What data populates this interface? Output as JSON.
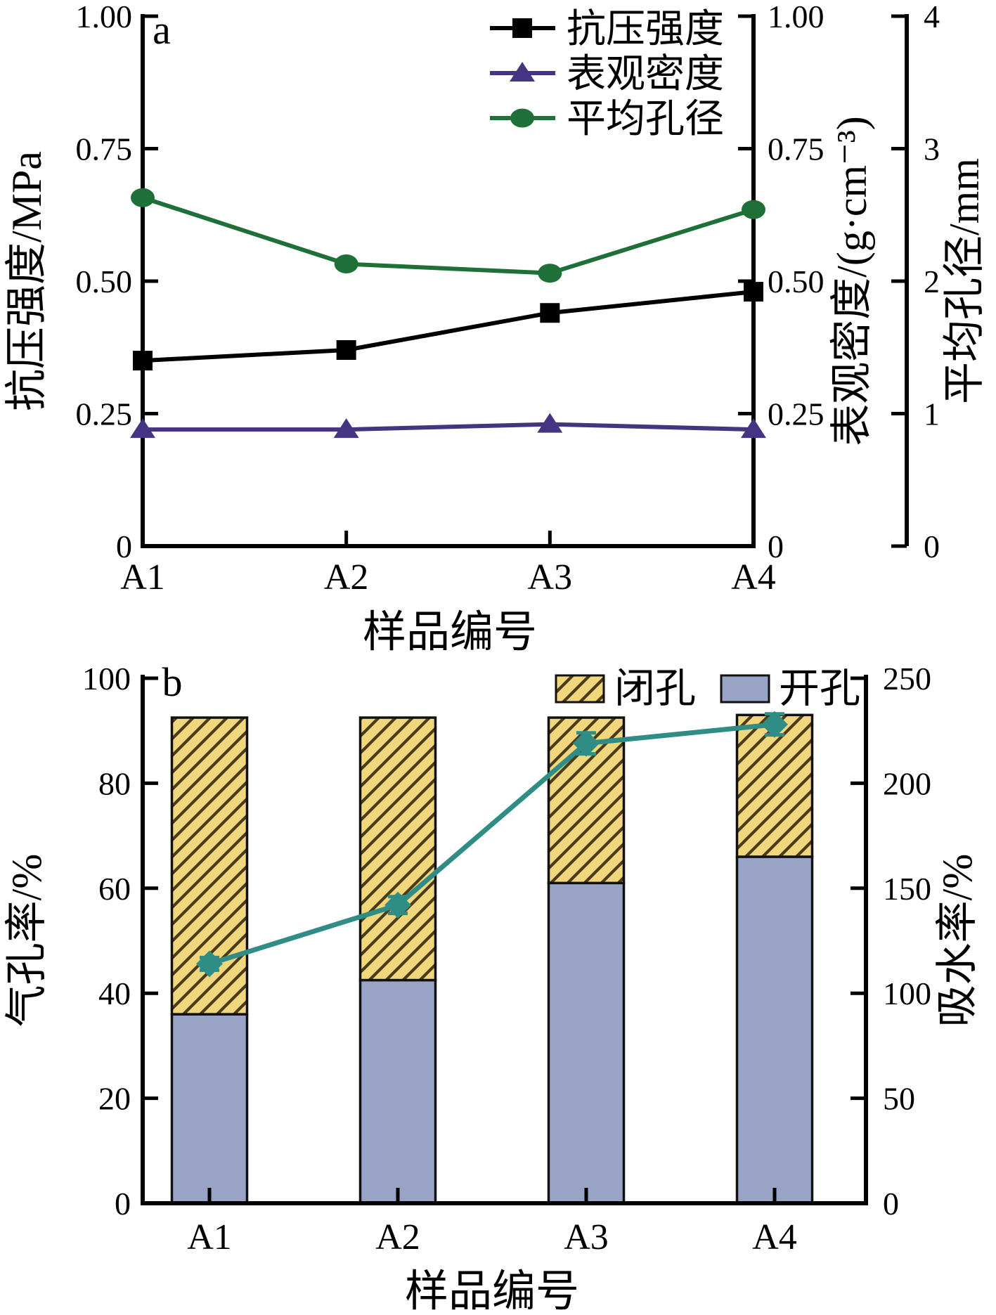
{
  "style": {
    "background": "#ffffff",
    "axis_color": "#000000",
    "series_colors": {
      "compressive": "#000000",
      "density": "#453481",
      "pore": "#1e7038",
      "absorption": "#2f8d85"
    },
    "bar_colors": {
      "closed_fill": "#f2d67b",
      "closed_hatch": "#4a3b1d",
      "open_fill": "#98a3c6",
      "edge": "#111111"
    }
  },
  "chart_data": [
    {
      "id": "panel_a",
      "type": "line",
      "panel_label": "a",
      "xlabel": "样品编号",
      "categories": [
        "A1",
        "A2",
        "A3",
        "A4"
      ],
      "left_axis": {
        "label": "抗压强度/MPa",
        "ticks": [
          "1.00",
          "0.75",
          "0.50",
          "0.25",
          "0"
        ],
        "range": [
          0,
          1.0
        ]
      },
      "right_axis_density": {
        "label": "表观密度/(g·cm⁻³)",
        "ticks": [
          "1.00",
          "0.75",
          "0.50",
          "0.25",
          "0"
        ],
        "range": [
          0,
          1.0
        ]
      },
      "right_axis_pore": {
        "label": "平均孔径/mm",
        "ticks": [
          "4",
          "3",
          "2",
          "1",
          "0"
        ],
        "range": [
          0,
          4
        ]
      },
      "grid": false,
      "legend_position": "upper center-right",
      "series": [
        {
          "name": "抗压强度",
          "axis": "left",
          "marker": "square",
          "color_key": "compressive",
          "values": [
            0.35,
            0.37,
            0.44,
            0.48
          ]
        },
        {
          "name": "表观密度",
          "axis": "density",
          "marker": "triangle",
          "color_key": "density",
          "values": [
            0.22,
            0.22,
            0.23,
            0.22
          ]
        },
        {
          "name": "平均孔径",
          "axis": "pore",
          "marker": "circle",
          "color_key": "pore",
          "values": [
            2.63,
            2.13,
            2.06,
            2.54
          ]
        }
      ]
    },
    {
      "id": "panel_b",
      "type": "stacked-bar+line",
      "panel_label": "b",
      "xlabel": "样品编号",
      "categories": [
        "A1",
        "A2",
        "A3",
        "A4"
      ],
      "left_axis": {
        "label": "气孔率/%",
        "ticks": [
          "100",
          "80",
          "60",
          "40",
          "20",
          "0"
        ],
        "range": [
          0,
          100
        ]
      },
      "right_axis": {
        "label": "吸水率/%",
        "ticks": [
          "250",
          "200",
          "150",
          "100",
          "50",
          "0"
        ],
        "range": [
          0,
          250
        ]
      },
      "grid": false,
      "legend": [
        "闭孔",
        "开孔"
      ],
      "bar_series": [
        {
          "name": "开孔",
          "stack_order": 1,
          "style": "open",
          "values": [
            36,
            42.5,
            61,
            66
          ]
        },
        {
          "name": "闭孔",
          "stack_order": 2,
          "style": "closed-hatched",
          "values": [
            56.5,
            50,
            31.5,
            27
          ]
        }
      ],
      "bar_totals": [
        92.5,
        92.5,
        92.5,
        93
      ],
      "line_series": {
        "name": "吸水率",
        "axis": "right",
        "marker": "diamond",
        "color_key": "absorption",
        "values": [
          114,
          142,
          219,
          228
        ],
        "error": [
          3,
          4,
          5,
          5
        ]
      }
    }
  ]
}
